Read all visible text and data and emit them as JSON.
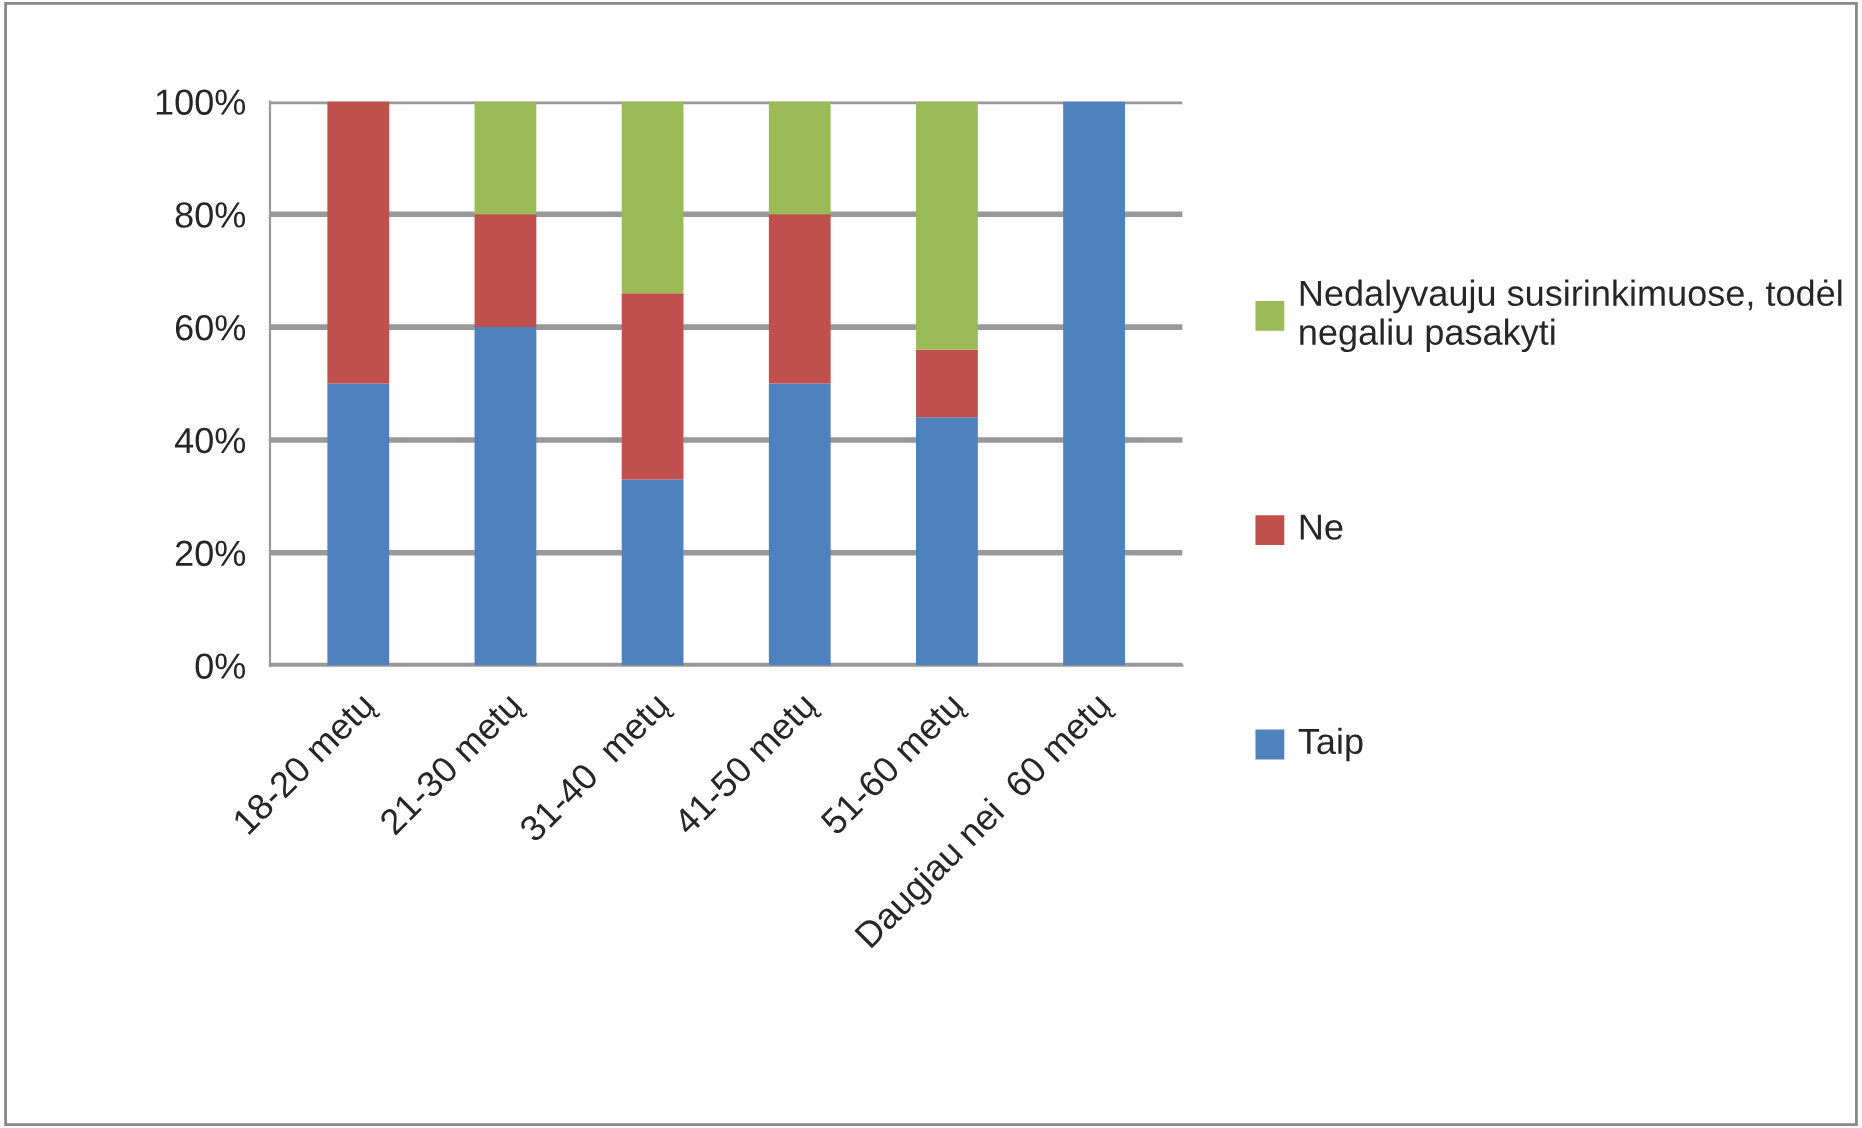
{
  "chart_data": {
    "type": "bar",
    "stacked": true,
    "categories": [
      "18-20 metų",
      "21-30 metų",
      "31-40  metų",
      "41-50 metų",
      "51-60 metų",
      "Daugiau nei  60 metų"
    ],
    "series": [
      {
        "name": "Taip",
        "color": "#4f81bd",
        "values": [
          50,
          60,
          33,
          50,
          44,
          100
        ]
      },
      {
        "name": "Ne",
        "color": "#c0504d",
        "values": [
          50,
          20,
          33,
          30,
          12,
          0
        ]
      },
      {
        "name": "Nedalyvauju susirinkimuose, todėl negaliu pasakyti",
        "color": "#9bbb59",
        "values": [
          0,
          20,
          34,
          20,
          44,
          0
        ]
      }
    ],
    "ylim": [
      0,
      100
    ],
    "yticks": [
      {
        "value": 0,
        "label": "0%"
      },
      {
        "value": 20,
        "label": "20%"
      },
      {
        "value": 40,
        "label": "40%"
      },
      {
        "value": 60,
        "label": "60%"
      },
      {
        "value": 80,
        "label": "80%"
      },
      {
        "value": 100,
        "label": "100%"
      }
    ],
    "grid": "y",
    "legend": "right"
  }
}
